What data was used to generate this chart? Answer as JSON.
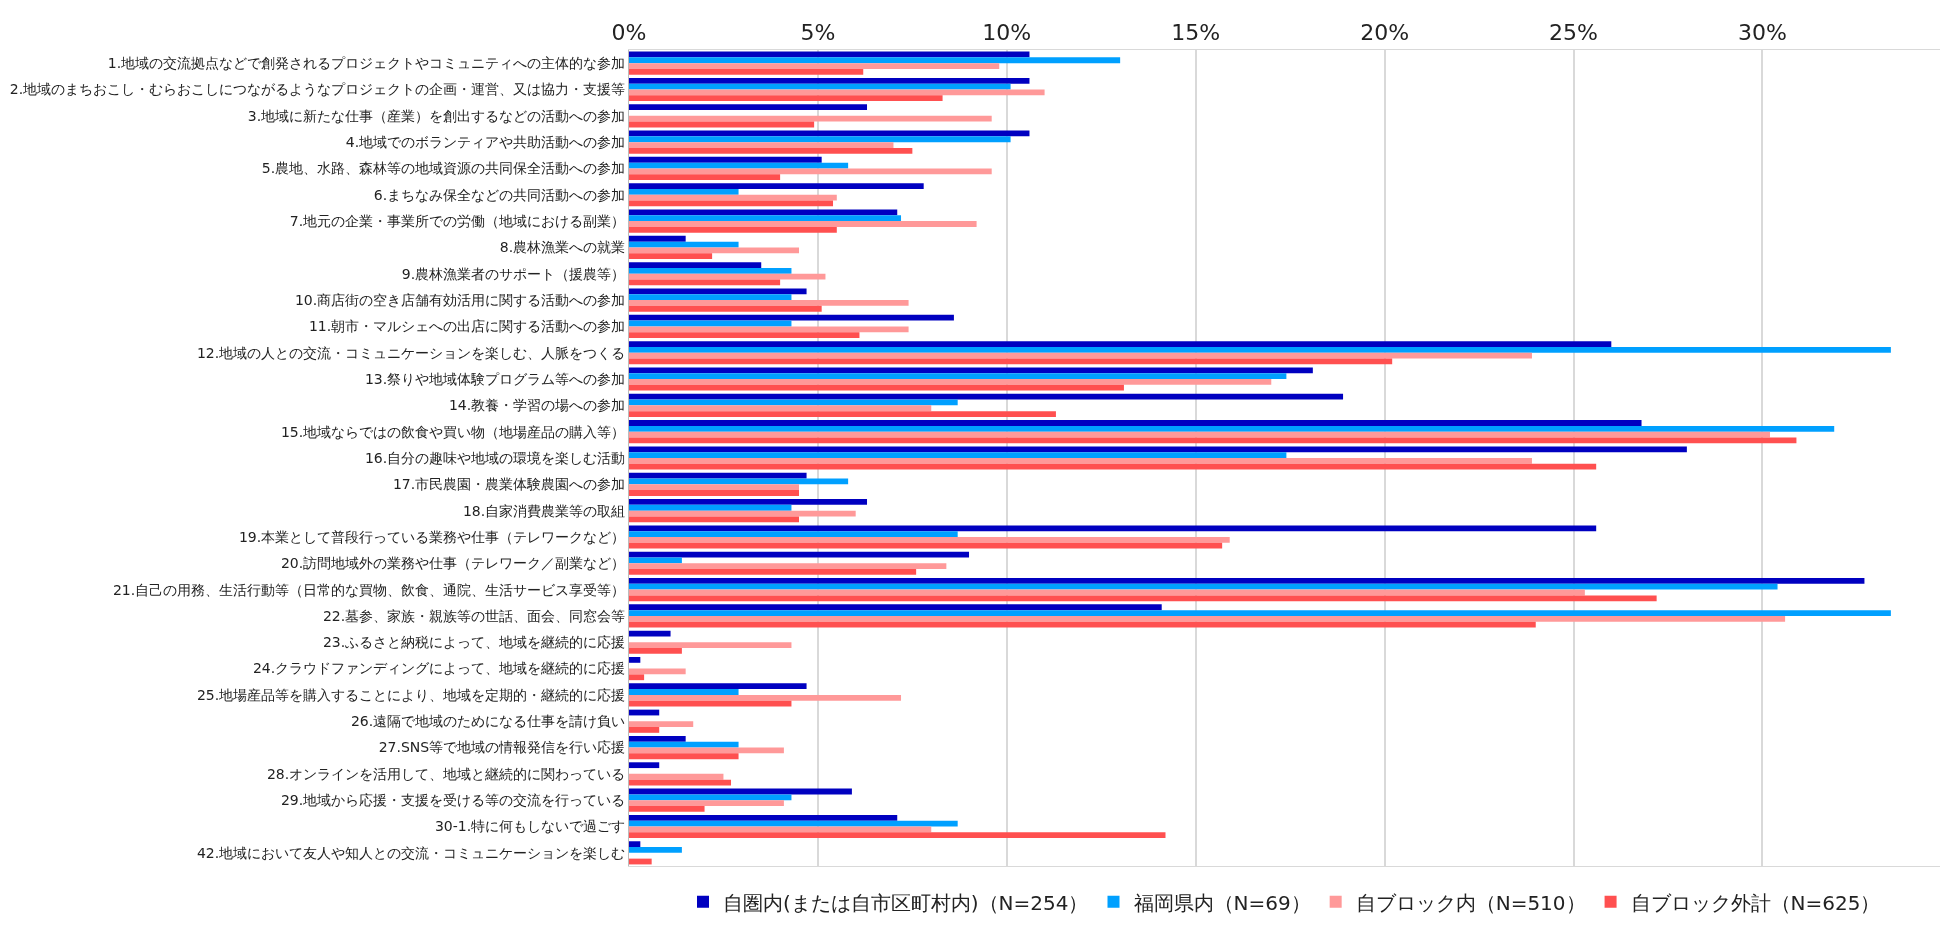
{
  "chart_data": {
    "type": "bar",
    "orientation": "horizontal",
    "grid": "x",
    "legend": "bottom",
    "categories": [
      "1.地域の交流拠点などで創発されるプロジェクトやコミュニティへの主体的な参加",
      "2.地域のまちおこし・むらおこしにつながるようなプロジェクトの企画・運営、又は協力・支援等",
      "3.地域に新たな仕事（産業）を創出するなどの活動への参加",
      "4.地域でのボランティアや共助活動への参加",
      "5.農地、水路、森林等の地域資源の共同保全活動への参加",
      "6.まちなみ保全などの共同活動への参加",
      "7.地元の企業・事業所での労働（地域における副業）",
      "8.農林漁業への就業",
      "9.農林漁業者のサポート（援農等）",
      "10.商店街の空き店舗有効活用に関する活動への参加",
      "11.朝市・マルシェへの出店に関する活動への参加",
      "12.地域の人との交流・コミュニケーションを楽しむ、人脈をつくる",
      "13.祭りや地域体験プログラム等への参加",
      "14.教養・学習の場への参加",
      "15.地域ならではの飲食や買い物（地場産品の購入等）",
      "16.自分の趣味や地域の環境を楽しむ活動",
      "17.市民農園・農業体験農園への参加",
      "18.自家消費農業等の取組",
      "19.本業として普段行っている業務や仕事（テレワークなど）",
      "20.訪問地域外の業務や仕事（テレワーク／副業など）",
      "21.自己の用務、生活行動等（日常的な買物、飲食、通院、生活サービス享受等）",
      "22.墓参、家族・親族等の世話、面会、同窓会等",
      "23.ふるさと納税によって、地域を継続的に応援",
      "24.クラウドファンディングによって、地域を継続的に応援",
      "25.地場産品等を購入することにより、地域を定期的・継続的に応援",
      "26.遠隔で地域のためになる仕事を請け負い",
      "27.SNS等で地域の情報発信を行い応援",
      "28.オンラインを活用して、地域と継続的に関わっている",
      "29.地域から応援・支援を受ける等の交流を行っている",
      "30-1.特に何もしないで過ごす",
      "42.地域において友人や知人との交流・コミュニケーションを楽しむ"
    ],
    "xlim": [
      0,
      34.7
    ],
    "xticks": [
      {
        "value": 0,
        "label": "0%"
      },
      {
        "value": 5,
        "label": "5%"
      },
      {
        "value": 10,
        "label": "10%"
      },
      {
        "value": 15,
        "label": "15%"
      },
      {
        "value": 20,
        "label": "20%"
      },
      {
        "value": 25,
        "label": "25%"
      },
      {
        "value": 30,
        "label": "30%"
      }
    ],
    "series": [
      {
        "name": "自圏内(または自市区町村内)（N=254）",
        "color": "#0000c0",
        "values": [
          10.6,
          10.6,
          6.3,
          10.6,
          5.1,
          7.8,
          7.1,
          1.5,
          3.5,
          4.7,
          8.6,
          26.0,
          18.1,
          18.9,
          26.8,
          28.0,
          4.7,
          6.3,
          25.6,
          9.0,
          32.7,
          14.1,
          1.1,
          0.3,
          4.7,
          0.8,
          1.5,
          0.8,
          5.9,
          7.1,
          0.3
        ]
      },
      {
        "name": "福岡県内（N=69）",
        "color": "#00a0ff",
        "values": [
          13.0,
          10.1,
          0,
          10.1,
          5.8,
          2.9,
          7.2,
          2.9,
          4.3,
          4.3,
          4.3,
          33.4,
          17.4,
          8.7,
          31.9,
          17.4,
          5.8,
          4.3,
          8.7,
          1.4,
          30.4,
          33.4,
          0,
          0,
          2.9,
          0,
          2.9,
          0,
          4.3,
          8.7,
          1.4
        ]
      },
      {
        "name": "自ブロック内（N=510）",
        "color": "#ff9999",
        "values": [
          9.8,
          11.0,
          9.6,
          7.0,
          9.6,
          5.5,
          9.2,
          4.5,
          5.2,
          7.4,
          7.4,
          23.9,
          17.0,
          8.0,
          30.2,
          23.9,
          4.5,
          6.0,
          15.9,
          8.4,
          25.3,
          30.6,
          4.3,
          1.5,
          7.2,
          1.7,
          4.1,
          2.5,
          4.1,
          8.0,
          0
        ]
      },
      {
        "name": "自ブロック外計（N=625）",
        "color": "#ff5050",
        "values": [
          6.2,
          8.3,
          4.9,
          7.5,
          4.0,
          5.4,
          5.5,
          2.2,
          4.0,
          5.1,
          6.1,
          20.2,
          13.1,
          11.3,
          30.9,
          25.6,
          4.5,
          4.5,
          15.7,
          7.6,
          27.2,
          24.0,
          1.4,
          0.4,
          4.3,
          0.8,
          2.9,
          2.7,
          2.0,
          14.2,
          0.6
        ]
      }
    ]
  }
}
